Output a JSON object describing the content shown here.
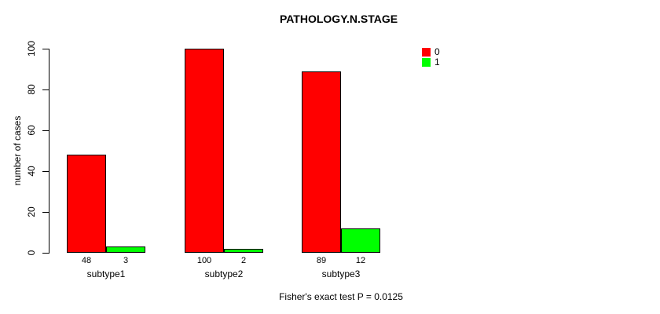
{
  "chart_data": {
    "type": "bar",
    "title": "PATHOLOGY.N.STAGE",
    "ylabel": "number of cases",
    "xlabel": "",
    "categories": [
      "subtype1",
      "subtype2",
      "subtype3"
    ],
    "series": [
      {
        "name": "0",
        "color": "#ff0000",
        "values": [
          48,
          100,
          89
        ]
      },
      {
        "name": "1",
        "color": "#00ff00",
        "values": [
          3,
          2,
          12
        ]
      }
    ],
    "yticks": [
      0,
      20,
      40,
      60,
      80,
      100
    ],
    "ylim": [
      0,
      100
    ],
    "grid": false,
    "legend_position": "top-right",
    "annotation": "Fisher's exact test P = 0.0125",
    "bar_border_color": "#000000",
    "background_color": "#ffffff"
  }
}
